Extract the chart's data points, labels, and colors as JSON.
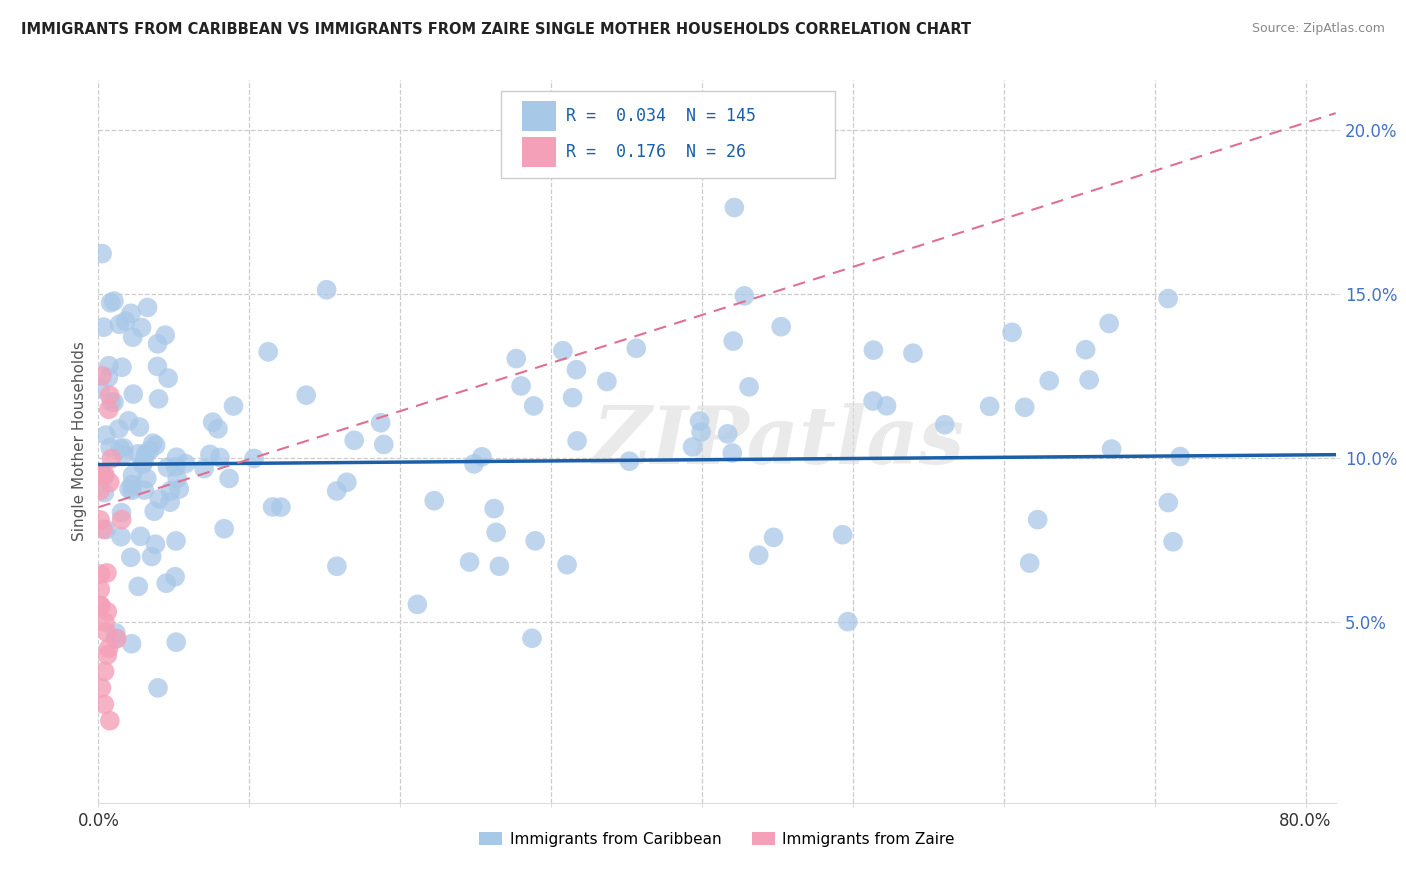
{
  "title": "IMMIGRANTS FROM CARIBBEAN VS IMMIGRANTS FROM ZAIRE SINGLE MOTHER HOUSEHOLDS CORRELATION CHART",
  "source": "Source: ZipAtlas.com",
  "ylabel": "Single Mother Households",
  "r_caribbean": 0.034,
  "n_caribbean": 145,
  "r_zaire": 0.176,
  "n_zaire": 26,
  "color_caribbean": "#a8c8e8",
  "color_zaire": "#f4a0b8",
  "color_trend_caribbean": "#1a5fa8",
  "color_trend_zaire": "#e07090",
  "xlim": [
    0.0,
    0.82
  ],
  "ylim": [
    -0.005,
    0.215
  ],
  "yticks": [
    0.05,
    0.1,
    0.15,
    0.2
  ],
  "ytick_labels": [
    "5.0%",
    "10.0%",
    "15.0%",
    "20.0%"
  ],
  "xtick_vals": [
    0.0,
    0.1,
    0.2,
    0.3,
    0.4,
    0.5,
    0.6,
    0.7,
    0.8
  ],
  "watermark": "ZIPatlas",
  "carib_trend_x": [
    0.0,
    0.82
  ],
  "carib_trend_y": [
    0.098,
    0.101
  ],
  "zaire_trend_x": [
    0.0,
    0.82
  ],
  "zaire_trend_y": [
    0.085,
    0.205
  ]
}
